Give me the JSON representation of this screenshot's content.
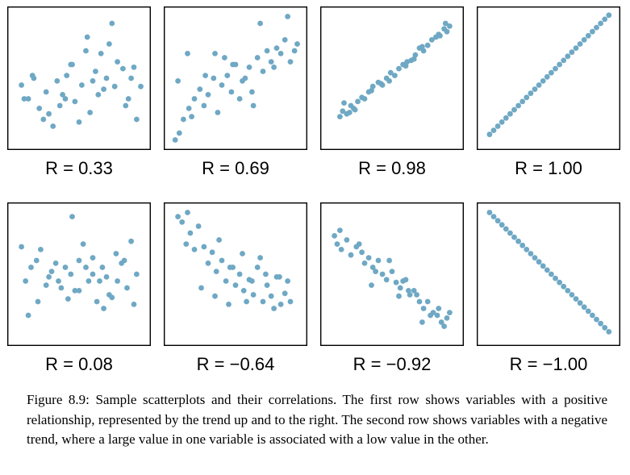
{
  "caption": "Figure 8.9: Sample scatterplots and their correlations. The first row shows variables with a positive relationship, represented by the trend up and to the right. The second row shows variables with a negative trend, where a large value in one variable is associated with a low value in the other.",
  "point_color": "#6fa8c4",
  "chart_data": [
    {
      "type": "scatter",
      "label": "R = 0.33",
      "xlim": [
        0,
        1
      ],
      "ylim": [
        0,
        1
      ],
      "x": [
        0.08,
        0.13,
        0.17,
        0.21,
        0.24,
        0.26,
        0.31,
        0.34,
        0.38,
        0.41,
        0.45,
        0.47,
        0.52,
        0.55,
        0.58,
        0.62,
        0.66,
        0.7,
        0.74,
        0.78,
        0.82,
        0.86,
        0.9,
        0.95,
        0.1,
        0.28,
        0.36,
        0.5,
        0.6,
        0.68,
        0.72,
        0.84,
        0.92,
        0.16,
        0.44,
        0.64,
        0.76,
        0.88,
        0.56,
        0.4
      ],
      "y": [
        0.45,
        0.35,
        0.5,
        0.28,
        0.2,
        0.4,
        0.15,
        0.48,
        0.38,
        0.52,
        0.6,
        0.33,
        0.45,
        0.7,
        0.25,
        0.55,
        0.68,
        0.5,
        0.9,
        0.62,
        0.57,
        0.35,
        0.58,
        0.44,
        0.35,
        0.24,
        0.3,
        0.18,
        0.48,
        0.42,
        0.75,
        0.3,
        0.2,
        0.52,
        0.6,
        0.38,
        0.44,
        0.5,
        0.8,
        0.35
      ]
    },
    {
      "type": "scatter",
      "label": "R = 0.69",
      "xlim": [
        0,
        1
      ],
      "ylim": [
        0,
        1
      ],
      "x": [
        0.06,
        0.09,
        0.12,
        0.16,
        0.2,
        0.24,
        0.27,
        0.3,
        0.34,
        0.37,
        0.4,
        0.44,
        0.47,
        0.5,
        0.53,
        0.57,
        0.6,
        0.63,
        0.66,
        0.7,
        0.73,
        0.76,
        0.8,
        0.83,
        0.86,
        0.9,
        0.93,
        0.95,
        0.08,
        0.18,
        0.28,
        0.42,
        0.55,
        0.68,
        0.78,
        0.88,
        0.35,
        0.62,
        0.15,
        0.48
      ],
      "y": [
        0.05,
        0.1,
        0.2,
        0.28,
        0.35,
        0.42,
        0.3,
        0.38,
        0.5,
        0.25,
        0.45,
        0.52,
        0.4,
        0.6,
        0.35,
        0.5,
        0.58,
        0.3,
        0.65,
        0.55,
        0.7,
        0.62,
        0.72,
        0.68,
        0.78,
        0.62,
        0.7,
        0.75,
        0.48,
        0.22,
        0.52,
        0.65,
        0.48,
        0.9,
        0.58,
        0.95,
        0.68,
        0.4,
        0.68,
        0.6
      ]
    },
    {
      "type": "scatter",
      "label": "R = 0.98",
      "xlim": [
        0,
        1
      ],
      "ylim": [
        0,
        1
      ],
      "x": [
        0.12,
        0.14,
        0.17,
        0.2,
        0.22,
        0.25,
        0.28,
        0.3,
        0.33,
        0.36,
        0.4,
        0.43,
        0.46,
        0.49,
        0.52,
        0.55,
        0.58,
        0.61,
        0.64,
        0.67,
        0.7,
        0.73,
        0.76,
        0.79,
        0.82,
        0.85,
        0.88,
        0.9,
        0.92,
        0.15,
        0.23,
        0.35,
        0.48,
        0.6,
        0.72,
        0.84,
        0.19,
        0.42,
        0.66,
        0.89
      ],
      "y": [
        0.22,
        0.26,
        0.24,
        0.3,
        0.28,
        0.33,
        0.36,
        0.35,
        0.4,
        0.44,
        0.47,
        0.45,
        0.5,
        0.54,
        0.52,
        0.57,
        0.6,
        0.62,
        0.63,
        0.67,
        0.72,
        0.7,
        0.74,
        0.78,
        0.8,
        0.81,
        0.86,
        0.84,
        0.88,
        0.32,
        0.27,
        0.41,
        0.48,
        0.59,
        0.73,
        0.82,
        0.25,
        0.46,
        0.64,
        0.9
      ]
    },
    {
      "type": "scatter",
      "label": "R = 1.00",
      "xlim": [
        0,
        1
      ],
      "ylim": [
        0,
        1
      ],
      "x": [
        0.07,
        0.1,
        0.13,
        0.16,
        0.19,
        0.22,
        0.25,
        0.28,
        0.31,
        0.34,
        0.37,
        0.4,
        0.43,
        0.46,
        0.49,
        0.52,
        0.55,
        0.58,
        0.61,
        0.64,
        0.67,
        0.7,
        0.73,
        0.76,
        0.79,
        0.82,
        0.85,
        0.88,
        0.91,
        0.94
      ],
      "y": [
        0.09,
        0.12,
        0.15,
        0.18,
        0.21,
        0.24,
        0.27,
        0.3,
        0.33,
        0.36,
        0.39,
        0.42,
        0.45,
        0.48,
        0.51,
        0.54,
        0.57,
        0.6,
        0.63,
        0.66,
        0.69,
        0.72,
        0.75,
        0.78,
        0.81,
        0.84,
        0.87,
        0.9,
        0.93,
        0.96
      ]
    },
    {
      "type": "scatter",
      "label": "R = 0.08",
      "xlim": [
        0,
        1
      ],
      "ylim": [
        0,
        1
      ],
      "x": [
        0.08,
        0.11,
        0.15,
        0.19,
        0.22,
        0.26,
        0.3,
        0.33,
        0.37,
        0.4,
        0.44,
        0.47,
        0.5,
        0.53,
        0.57,
        0.6,
        0.63,
        0.67,
        0.7,
        0.74,
        0.77,
        0.81,
        0.85,
        0.88,
        0.92,
        0.13,
        0.28,
        0.42,
        0.55,
        0.65,
        0.72,
        0.83,
        0.9,
        0.35,
        0.6,
        0.45,
        0.2,
        0.78,
        0.5,
        0.68
      ],
      "y": [
        0.7,
        0.45,
        0.55,
        0.6,
        0.68,
        0.42,
        0.52,
        0.58,
        0.4,
        0.55,
        0.5,
        0.38,
        0.6,
        0.72,
        0.45,
        0.62,
        0.3,
        0.55,
        0.48,
        0.33,
        0.65,
        0.58,
        0.4,
        0.74,
        0.5,
        0.2,
        0.48,
        0.32,
        0.55,
        0.45,
        0.35,
        0.6,
        0.28,
        0.45,
        0.5,
        0.92,
        0.3,
        0.45,
        0.38,
        0.25
      ]
    },
    {
      "type": "scatter",
      "label": "R = −0.64",
      "xlim": [
        0,
        1
      ],
      "ylim": [
        0,
        1
      ],
      "x": [
        0.08,
        0.11,
        0.14,
        0.17,
        0.2,
        0.23,
        0.27,
        0.3,
        0.33,
        0.36,
        0.4,
        0.43,
        0.46,
        0.5,
        0.53,
        0.56,
        0.6,
        0.63,
        0.66,
        0.7,
        0.73,
        0.76,
        0.8,
        0.83,
        0.86,
        0.9,
        0.15,
        0.25,
        0.38,
        0.48,
        0.58,
        0.68,
        0.78,
        0.88,
        0.35,
        0.55,
        0.72,
        0.45,
        0.62,
        0.82
      ],
      "y": [
        0.92,
        0.88,
        0.72,
        0.8,
        0.68,
        0.85,
        0.7,
        0.58,
        0.66,
        0.52,
        0.6,
        0.45,
        0.55,
        0.42,
        0.5,
        0.38,
        0.46,
        0.35,
        0.55,
        0.3,
        0.42,
        0.34,
        0.48,
        0.28,
        0.36,
        0.3,
        0.95,
        0.4,
        0.75,
        0.55,
        0.3,
        0.62,
        0.25,
        0.45,
        0.34,
        0.65,
        0.5,
        0.28,
        0.45,
        0.48
      ]
    },
    {
      "type": "scatter",
      "label": "R = −0.92",
      "xlim": [
        0,
        1
      ],
      "ylim": [
        0,
        1
      ],
      "x": [
        0.08,
        0.1,
        0.13,
        0.17,
        0.2,
        0.24,
        0.28,
        0.3,
        0.33,
        0.36,
        0.4,
        0.43,
        0.46,
        0.5,
        0.53,
        0.56,
        0.6,
        0.63,
        0.66,
        0.7,
        0.73,
        0.76,
        0.8,
        0.83,
        0.86,
        0.9,
        0.92,
        0.12,
        0.26,
        0.38,
        0.48,
        0.58,
        0.68,
        0.78,
        0.88,
        0.35,
        0.55,
        0.72,
        0.84,
        0.62
      ],
      "y": [
        0.78,
        0.72,
        0.68,
        0.75,
        0.64,
        0.7,
        0.66,
        0.58,
        0.62,
        0.55,
        0.6,
        0.5,
        0.46,
        0.52,
        0.44,
        0.4,
        0.46,
        0.35,
        0.38,
        0.3,
        0.25,
        0.3,
        0.22,
        0.2,
        0.15,
        0.18,
        0.22,
        0.82,
        0.72,
        0.52,
        0.6,
        0.45,
        0.35,
        0.2,
        0.12,
        0.42,
        0.34,
        0.15,
        0.25,
        0.38
      ]
    },
    {
      "type": "scatter",
      "label": "R = −1.00",
      "xlim": [
        0,
        1
      ],
      "ylim": [
        0,
        1
      ],
      "x": [
        0.07,
        0.1,
        0.13,
        0.16,
        0.19,
        0.22,
        0.25,
        0.28,
        0.31,
        0.34,
        0.37,
        0.4,
        0.43,
        0.46,
        0.49,
        0.52,
        0.55,
        0.58,
        0.61,
        0.64,
        0.67,
        0.7,
        0.73,
        0.76,
        0.79,
        0.82,
        0.85,
        0.88,
        0.91,
        0.94
      ],
      "y": [
        0.95,
        0.92,
        0.89,
        0.86,
        0.83,
        0.8,
        0.77,
        0.74,
        0.71,
        0.68,
        0.65,
        0.62,
        0.59,
        0.56,
        0.53,
        0.5,
        0.47,
        0.44,
        0.41,
        0.38,
        0.35,
        0.32,
        0.29,
        0.26,
        0.23,
        0.2,
        0.17,
        0.14,
        0.11,
        0.08
      ]
    }
  ]
}
